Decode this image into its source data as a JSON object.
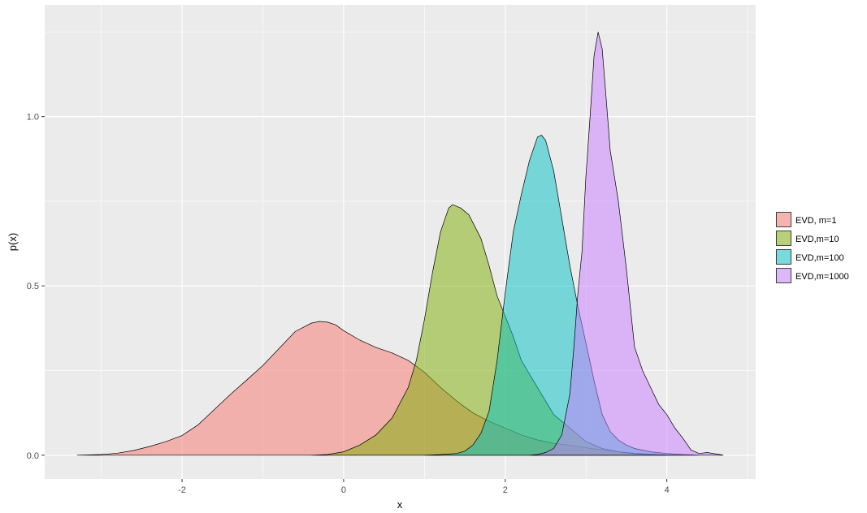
{
  "chart_data": {
    "type": "area",
    "xlabel": "x",
    "ylabel": "p(x)",
    "xlim": [
      -3.7,
      5.1
    ],
    "ylim": [
      -0.07,
      1.33
    ],
    "x_ticks": [
      -2,
      0,
      2,
      4
    ],
    "y_ticks": [
      0.0,
      0.5,
      1.0
    ],
    "y_tick_labels": [
      "0.0",
      "0.5",
      "1.0"
    ],
    "grid": true,
    "legend_position": "right",
    "series": [
      {
        "name": "EVD, m=1",
        "color": "#F8766D",
        "points": [
          [
            -3.3,
            0.0
          ],
          [
            -3.0,
            0.002
          ],
          [
            -2.8,
            0.006
          ],
          [
            -2.6,
            0.014
          ],
          [
            -2.4,
            0.026
          ],
          [
            -2.2,
            0.04
          ],
          [
            -2.0,
            0.058
          ],
          [
            -1.8,
            0.09
          ],
          [
            -1.6,
            0.135
          ],
          [
            -1.4,
            0.18
          ],
          [
            -1.2,
            0.222
          ],
          [
            -1.0,
            0.265
          ],
          [
            -0.8,
            0.315
          ],
          [
            -0.6,
            0.365
          ],
          [
            -0.4,
            0.39
          ],
          [
            -0.3,
            0.395
          ],
          [
            -0.2,
            0.393
          ],
          [
            -0.1,
            0.385
          ],
          [
            0.0,
            0.368
          ],
          [
            0.2,
            0.34
          ],
          [
            0.4,
            0.318
          ],
          [
            0.6,
            0.302
          ],
          [
            0.8,
            0.28
          ],
          [
            1.0,
            0.245
          ],
          [
            1.2,
            0.2
          ],
          [
            1.4,
            0.16
          ],
          [
            1.6,
            0.125
          ],
          [
            1.8,
            0.1
          ],
          [
            2.0,
            0.08
          ],
          [
            2.2,
            0.06
          ],
          [
            2.4,
            0.045
          ],
          [
            2.6,
            0.035
          ],
          [
            2.8,
            0.03
          ],
          [
            3.0,
            0.022
          ],
          [
            3.2,
            0.016
          ],
          [
            3.4,
            0.01
          ],
          [
            3.6,
            0.006
          ],
          [
            3.8,
            0.003
          ],
          [
            4.0,
            0.001
          ],
          [
            4.2,
            0.0
          ]
        ]
      },
      {
        "name": "EVD,m=10",
        "color": "#7CAE00",
        "points": [
          [
            -0.4,
            0.0
          ],
          [
            -0.2,
            0.002
          ],
          [
            0.0,
            0.01
          ],
          [
            0.2,
            0.03
          ],
          [
            0.4,
            0.06
          ],
          [
            0.6,
            0.11
          ],
          [
            0.8,
            0.2
          ],
          [
            0.9,
            0.28
          ],
          [
            1.0,
            0.4
          ],
          [
            1.1,
            0.54
          ],
          [
            1.2,
            0.66
          ],
          [
            1.3,
            0.73
          ],
          [
            1.35,
            0.74
          ],
          [
            1.45,
            0.73
          ],
          [
            1.55,
            0.71
          ],
          [
            1.7,
            0.64
          ],
          [
            1.8,
            0.56
          ],
          [
            1.9,
            0.47
          ],
          [
            2.0,
            0.41
          ],
          [
            2.1,
            0.35
          ],
          [
            2.2,
            0.28
          ],
          [
            2.4,
            0.2
          ],
          [
            2.6,
            0.12
          ],
          [
            2.8,
            0.08
          ],
          [
            3.0,
            0.04
          ],
          [
            3.2,
            0.02
          ],
          [
            3.4,
            0.01
          ],
          [
            3.6,
            0.004
          ],
          [
            3.8,
            0.001
          ],
          [
            4.0,
            0.0
          ]
        ]
      },
      {
        "name": "EVD,m=100",
        "color": "#00BFC4",
        "points": [
          [
            1.0,
            0.0
          ],
          [
            1.2,
            0.002
          ],
          [
            1.4,
            0.005
          ],
          [
            1.5,
            0.012
          ],
          [
            1.6,
            0.03
          ],
          [
            1.7,
            0.065
          ],
          [
            1.8,
            0.13
          ],
          [
            1.9,
            0.28
          ],
          [
            2.0,
            0.48
          ],
          [
            2.1,
            0.66
          ],
          [
            2.2,
            0.77
          ],
          [
            2.3,
            0.87
          ],
          [
            2.4,
            0.94
          ],
          [
            2.45,
            0.945
          ],
          [
            2.5,
            0.93
          ],
          [
            2.6,
            0.84
          ],
          [
            2.7,
            0.7
          ],
          [
            2.8,
            0.56
          ],
          [
            2.9,
            0.44
          ],
          [
            3.0,
            0.33
          ],
          [
            3.1,
            0.22
          ],
          [
            3.2,
            0.12
          ],
          [
            3.3,
            0.07
          ],
          [
            3.4,
            0.045
          ],
          [
            3.5,
            0.03
          ],
          [
            3.6,
            0.02
          ],
          [
            3.8,
            0.01
          ],
          [
            4.0,
            0.005
          ],
          [
            4.2,
            0.002
          ],
          [
            4.4,
            0.0
          ]
        ]
      },
      {
        "name": "EVD,m=1000",
        "color": "#C77CFF",
        "points": [
          [
            2.3,
            0.0
          ],
          [
            2.4,
            0.002
          ],
          [
            2.5,
            0.008
          ],
          [
            2.6,
            0.02
          ],
          [
            2.7,
            0.06
          ],
          [
            2.8,
            0.18
          ],
          [
            2.85,
            0.32
          ],
          [
            2.9,
            0.48
          ],
          [
            2.95,
            0.6
          ],
          [
            3.0,
            0.83
          ],
          [
            3.05,
            1.0
          ],
          [
            3.1,
            1.18
          ],
          [
            3.15,
            1.25
          ],
          [
            3.2,
            1.2
          ],
          [
            3.25,
            1.05
          ],
          [
            3.3,
            0.9
          ],
          [
            3.4,
            0.75
          ],
          [
            3.5,
            0.55
          ],
          [
            3.6,
            0.32
          ],
          [
            3.7,
            0.25
          ],
          [
            3.8,
            0.2
          ],
          [
            3.9,
            0.15
          ],
          [
            4.0,
            0.12
          ],
          [
            4.1,
            0.08
          ],
          [
            4.2,
            0.05
          ],
          [
            4.3,
            0.015
          ],
          [
            4.4,
            0.005
          ],
          [
            4.5,
            0.008
          ],
          [
            4.6,
            0.004
          ],
          [
            4.7,
            0.0
          ]
        ]
      }
    ]
  }
}
